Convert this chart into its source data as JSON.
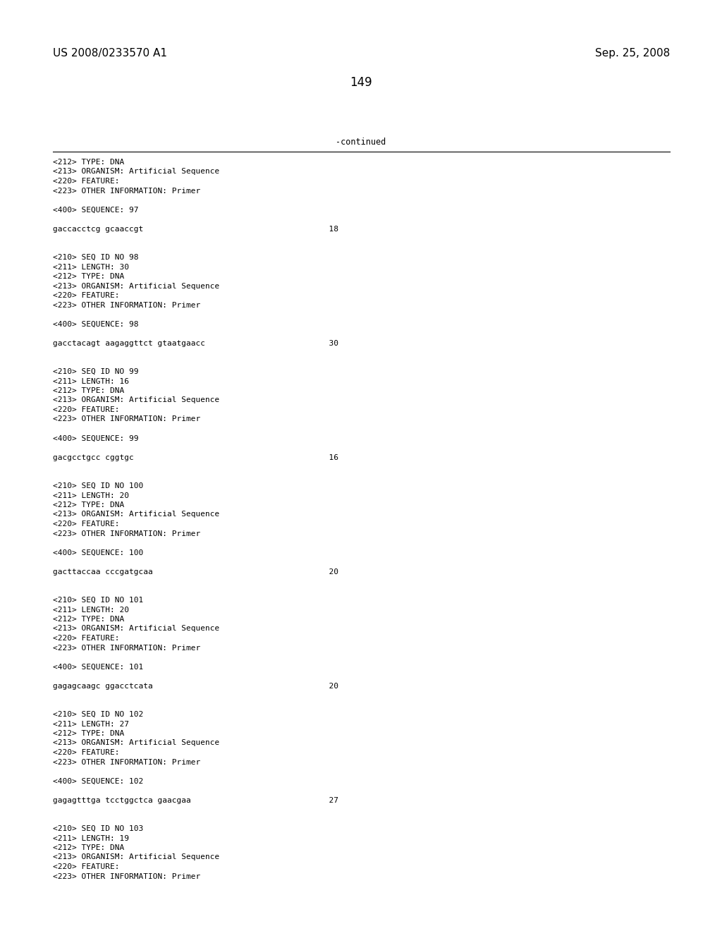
{
  "background_color": "#ffffff",
  "header_left": "US 2008/0233570 A1",
  "header_right": "Sep. 25, 2008",
  "page_number": "149",
  "continued_label": "-continued",
  "font_size_header": 11,
  "font_size_body": 8.0,
  "font_size_page": 12,
  "content_lines": [
    "<212> TYPE: DNA",
    "<213> ORGANISM: Artificial Sequence",
    "<220> FEATURE:",
    "<223> OTHER INFORMATION: Primer",
    "",
    "<400> SEQUENCE: 97",
    "",
    "gaccacctcg gcaaccgt                                       18",
    "",
    "",
    "<210> SEQ ID NO 98",
    "<211> LENGTH: 30",
    "<212> TYPE: DNA",
    "<213> ORGANISM: Artificial Sequence",
    "<220> FEATURE:",
    "<223> OTHER INFORMATION: Primer",
    "",
    "<400> SEQUENCE: 98",
    "",
    "gacctacagt aagaggttct gtaatgaacc                          30",
    "",
    "",
    "<210> SEQ ID NO 99",
    "<211> LENGTH: 16",
    "<212> TYPE: DNA",
    "<213> ORGANISM: Artificial Sequence",
    "<220> FEATURE:",
    "<223> OTHER INFORMATION: Primer",
    "",
    "<400> SEQUENCE: 99",
    "",
    "gacgcctgcc cggtgc                                         16",
    "",
    "",
    "<210> SEQ ID NO 100",
    "<211> LENGTH: 20",
    "<212> TYPE: DNA",
    "<213> ORGANISM: Artificial Sequence",
    "<220> FEATURE:",
    "<223> OTHER INFORMATION: Primer",
    "",
    "<400> SEQUENCE: 100",
    "",
    "gacttaccaa cccgatgcaa                                     20",
    "",
    "",
    "<210> SEQ ID NO 101",
    "<211> LENGTH: 20",
    "<212> TYPE: DNA",
    "<213> ORGANISM: Artificial Sequence",
    "<220> FEATURE:",
    "<223> OTHER INFORMATION: Primer",
    "",
    "<400> SEQUENCE: 101",
    "",
    "gagagcaagc ggacctcata                                     20",
    "",
    "",
    "<210> SEQ ID NO 102",
    "<211> LENGTH: 27",
    "<212> TYPE: DNA",
    "<213> ORGANISM: Artificial Sequence",
    "<220> FEATURE:",
    "<223> OTHER INFORMATION: Primer",
    "",
    "<400> SEQUENCE: 102",
    "",
    "gagagtttga tcctggctca gaacgaa                             27",
    "",
    "",
    "<210> SEQ ID NO 103",
    "<211> LENGTH: 19",
    "<212> TYPE: DNA",
    "<213> ORGANISM: Artificial Sequence",
    "<220> FEATURE:",
    "<223> OTHER INFORMATION: Primer"
  ]
}
